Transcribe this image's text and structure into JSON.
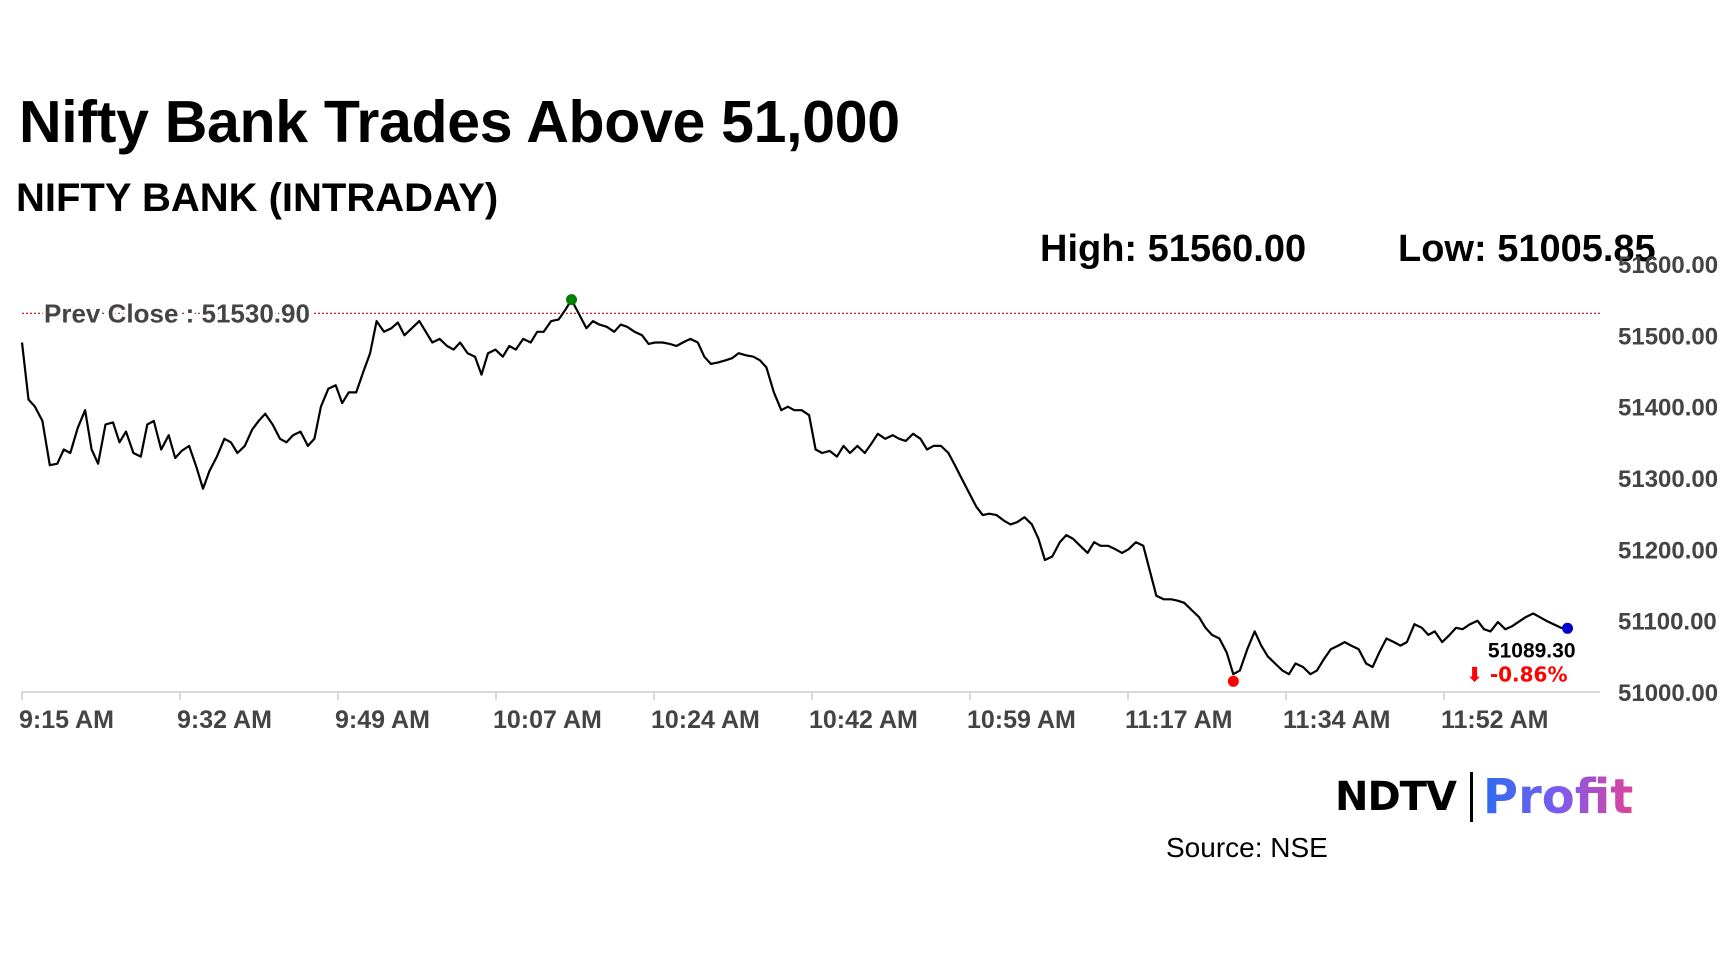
{
  "chart_data": {
    "type": "line",
    "title": "Nifty Bank Trades Above 51,000",
    "subtitle": "NIFTY BANK (INTRADAY)",
    "stats": {
      "high_label": "High: 51560.00",
      "low_label": "Low: 51005.85",
      "high": 51560.0,
      "low": 51005.85
    },
    "prev_close": 51530.9,
    "prev_close_label": "Prev Close : 51530.90",
    "last_value": 51089.3,
    "last_value_label": "51089.30",
    "change_label": "⬇ -0.86%",
    "x_tick_labels": [
      "9:15 AM",
      "9:32 AM",
      "9:49 AM",
      "10:07 AM",
      "10:24 AM",
      "10:42 AM",
      "10:59 AM",
      "11:17 AM",
      "11:34 AM",
      "11:52 AM"
    ],
    "y_tick_labels": [
      "51000.00",
      "51100.00",
      "51200.00",
      "51300.00",
      "51400.00",
      "51500.00",
      "51600.00"
    ],
    "ylim": [
      51000,
      51600
    ],
    "x_unit": "minutes since 9:15 AM",
    "xlim": [
      0,
      170
    ],
    "series": [
      {
        "name": "",
        "color": "#000000",
        "points": [
          [
            0,
            51490
          ],
          [
            0.7,
            51410
          ],
          [
            1.4,
            51400
          ],
          [
            2.2,
            51380
          ],
          [
            3,
            51318
          ],
          [
            3.8,
            51320
          ],
          [
            4.5,
            51340
          ],
          [
            5.2,
            51335
          ],
          [
            6,
            51370
          ],
          [
            6.8,
            51395
          ],
          [
            7.5,
            51340
          ],
          [
            8.2,
            51320
          ],
          [
            9,
            51375
          ],
          [
            9.8,
            51378
          ],
          [
            10.5,
            51350
          ],
          [
            11.2,
            51365
          ],
          [
            12,
            51335
          ],
          [
            12.8,
            51330
          ],
          [
            13.5,
            51375
          ],
          [
            14.2,
            51380
          ],
          [
            15,
            51340
          ],
          [
            15.8,
            51360
          ],
          [
            16.5,
            51328
          ],
          [
            17.2,
            51338
          ],
          [
            18,
            51345
          ],
          [
            18.8,
            51315
          ],
          [
            19.5,
            51285
          ],
          [
            20.2,
            51310
          ],
          [
            21,
            51330
          ],
          [
            21.8,
            51355
          ],
          [
            22.5,
            51350
          ],
          [
            23.2,
            51335
          ],
          [
            24,
            51345
          ],
          [
            24.8,
            51368
          ],
          [
            25.5,
            51380
          ],
          [
            26.2,
            51390
          ],
          [
            27,
            51375
          ],
          [
            27.8,
            51355
          ],
          [
            28.5,
            51350
          ],
          [
            29.2,
            51360
          ],
          [
            30,
            51365
          ],
          [
            30.8,
            51345
          ],
          [
            31.5,
            51355
          ],
          [
            32.2,
            51400
          ],
          [
            33,
            51425
          ],
          [
            33.8,
            51430
          ],
          [
            34.5,
            51405
          ],
          [
            35.2,
            51420
          ],
          [
            36,
            51420
          ],
          [
            36.8,
            51450
          ],
          [
            37.5,
            51475
          ],
          [
            38.2,
            51520
          ],
          [
            39,
            51505
          ],
          [
            39.8,
            51510
          ],
          [
            40.5,
            51518
          ],
          [
            41.2,
            51500
          ],
          [
            42,
            51510
          ],
          [
            42.8,
            51520
          ],
          [
            43.5,
            51505
          ],
          [
            44.2,
            51490
          ],
          [
            45,
            51495
          ],
          [
            45.8,
            51485
          ],
          [
            46.5,
            51480
          ],
          [
            47.2,
            51490
          ],
          [
            48,
            51475
          ],
          [
            48.8,
            51470
          ],
          [
            49.5,
            51445
          ],
          [
            50.2,
            51475
          ],
          [
            51,
            51480
          ],
          [
            51.8,
            51470
          ],
          [
            52.5,
            51485
          ],
          [
            53.2,
            51480
          ],
          [
            54,
            51495
          ],
          [
            54.8,
            51490
          ],
          [
            55.5,
            51505
          ],
          [
            56.2,
            51505
          ],
          [
            57,
            51520
          ],
          [
            57.8,
            51522
          ],
          [
            58.5,
            51535
          ],
          [
            59.2,
            51550
          ],
          [
            60,
            51530
          ],
          [
            60.8,
            51510
          ],
          [
            61.5,
            51520
          ],
          [
            62.2,
            51515
          ],
          [
            63,
            51512
          ],
          [
            63.8,
            51505
          ],
          [
            64.5,
            51515
          ],
          [
            65.2,
            51512
          ],
          [
            66,
            51505
          ],
          [
            66.8,
            51500
          ],
          [
            67.5,
            51488
          ],
          [
            68.2,
            51490
          ],
          [
            69,
            51490
          ],
          [
            69.8,
            51488
          ],
          [
            70.5,
            51485
          ],
          [
            71.2,
            51490
          ],
          [
            72,
            51495
          ],
          [
            72.8,
            51490
          ],
          [
            73.5,
            51470
          ],
          [
            74.2,
            51460
          ],
          [
            75,
            51462
          ],
          [
            75.8,
            51465
          ],
          [
            76.5,
            51468
          ],
          [
            77.2,
            51475
          ],
          [
            78,
            51472
          ],
          [
            78.8,
            51470
          ],
          [
            79.5,
            51465
          ],
          [
            80.2,
            51455
          ],
          [
            81,
            51420
          ],
          [
            81.8,
            51395
          ],
          [
            82.5,
            51400
          ],
          [
            83.2,
            51395
          ],
          [
            84,
            51395
          ],
          [
            84.8,
            51388
          ],
          [
            85.5,
            51340
          ],
          [
            86.2,
            51335
          ],
          [
            87,
            51338
          ],
          [
            87.8,
            51330
          ],
          [
            88.5,
            51345
          ],
          [
            89.2,
            51335
          ],
          [
            90,
            51345
          ],
          [
            90.8,
            51335
          ],
          [
            91.5,
            51348
          ],
          [
            92.2,
            51362
          ],
          [
            93,
            51355
          ],
          [
            93.8,
            51360
          ],
          [
            94.5,
            51355
          ],
          [
            95.2,
            51352
          ],
          [
            96,
            51362
          ],
          [
            96.8,
            51355
          ],
          [
            97.5,
            51340
          ],
          [
            98.2,
            51345
          ],
          [
            99,
            51345
          ],
          [
            99.8,
            51335
          ],
          [
            100.5,
            51318
          ],
          [
            101.2,
            51300
          ],
          [
            102,
            51280
          ],
          [
            102.8,
            51260
          ],
          [
            103.5,
            51248
          ],
          [
            104.2,
            51250
          ],
          [
            105,
            51248
          ],
          [
            105.8,
            51240
          ],
          [
            106.5,
            51235
          ],
          [
            107.2,
            51238
          ],
          [
            108,
            51245
          ],
          [
            108.8,
            51235
          ],
          [
            109.5,
            51215
          ],
          [
            110.2,
            51185
          ],
          [
            111,
            51190
          ],
          [
            111.8,
            51210
          ],
          [
            112.5,
            51220
          ],
          [
            113.2,
            51215
          ],
          [
            114,
            51205
          ],
          [
            114.8,
            51195
          ],
          [
            115.5,
            51210
          ],
          [
            116.2,
            51205
          ],
          [
            117,
            51205
          ],
          [
            117.8,
            51200
          ],
          [
            118.5,
            51195
          ],
          [
            119.2,
            51200
          ],
          [
            120,
            51210
          ],
          [
            120.8,
            51205
          ],
          [
            121.5,
            51170
          ],
          [
            122.2,
            51135
          ],
          [
            123,
            51130
          ],
          [
            123.8,
            51130
          ],
          [
            124.5,
            51128
          ],
          [
            125.2,
            51125
          ],
          [
            126,
            51115
          ],
          [
            126.8,
            51105
          ],
          [
            127.5,
            51090
          ],
          [
            128.2,
            51080
          ],
          [
            129,
            51075
          ],
          [
            129.8,
            51055
          ],
          [
            130.5,
            51025
          ],
          [
            131.2,
            51030
          ],
          [
            132,
            51060
          ],
          [
            132.8,
            51085
          ],
          [
            133.5,
            51065
          ],
          [
            134.2,
            51050
          ],
          [
            135,
            51040
          ],
          [
            135.8,
            51030
          ],
          [
            136.5,
            51025
          ],
          [
            137.2,
            51040
          ],
          [
            138,
            51035
          ],
          [
            138.8,
            51025
          ],
          [
            139.5,
            51030
          ],
          [
            140.2,
            51045
          ],
          [
            141,
            51060
          ],
          [
            141.8,
            51065
          ],
          [
            142.5,
            51070
          ],
          [
            143.2,
            51065
          ],
          [
            144,
            51060
          ],
          [
            144.8,
            51040
          ],
          [
            145.5,
            51035
          ],
          [
            146.2,
            51055
          ],
          [
            147,
            51075
          ],
          [
            147.8,
            51070
          ],
          [
            148.5,
            51065
          ],
          [
            149.2,
            51070
          ],
          [
            150,
            51095
          ],
          [
            150.8,
            51090
          ],
          [
            151.5,
            51080
          ],
          [
            152.2,
            51085
          ],
          [
            153,
            51070
          ],
          [
            153.8,
            51080
          ],
          [
            154.5,
            51090
          ],
          [
            155.2,
            51088
          ],
          [
            156,
            51095
          ],
          [
            156.8,
            51100
          ],
          [
            157.5,
            51088
          ],
          [
            158.2,
            51085
          ],
          [
            159,
            51098
          ],
          [
            159.8,
            51088
          ],
          [
            160.5,
            51092
          ],
          [
            161.2,
            51098
          ],
          [
            162,
            51105
          ],
          [
            162.8,
            51110
          ],
          [
            163.5,
            51105
          ],
          [
            164.2,
            51100
          ],
          [
            165,
            51095
          ],
          [
            165.8,
            51090
          ],
          [
            166.5,
            51089.3
          ]
        ]
      }
    ],
    "high_point": [
      59.2,
      51550
    ],
    "low_point": [
      130.5,
      51015
    ],
    "colors": {
      "line": "#000000",
      "high_marker": "#008000",
      "low_marker": "#ff0000",
      "last_marker": "#0000cc",
      "prev_close_line": "#cc0000",
      "change_negative": "#ff0000",
      "label_gray": "#444444",
      "axis": "#cccccc"
    }
  },
  "branding": {
    "ndtv": "NDTV",
    "profit": "Profit",
    "source": "Source: NSE"
  }
}
